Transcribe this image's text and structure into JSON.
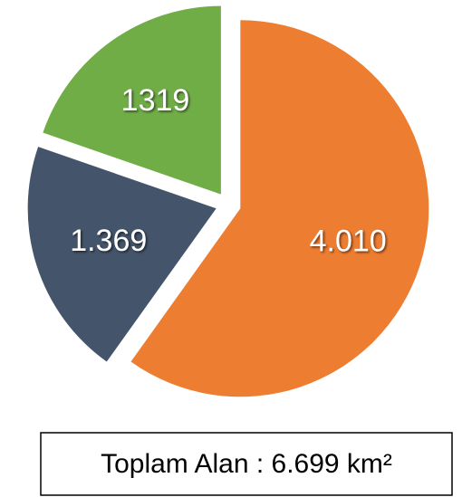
{
  "chart_data": {
    "type": "pie",
    "values": [
      4010,
      1369,
      1319
    ],
    "value_labels": [
      "4.010",
      "1.369",
      "1319"
    ],
    "colors": [
      "#ed7d31",
      "#44546a",
      "#70ad47"
    ],
    "exploded": true,
    "start_angle": "top",
    "direction": "clockwise",
    "total_label": "Toplam Alan : 6.699 km²"
  }
}
